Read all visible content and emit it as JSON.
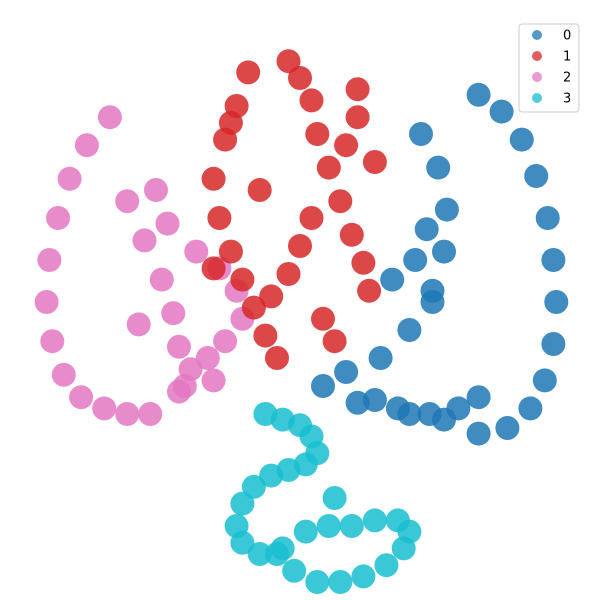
{
  "chart_data": {
    "type": "scatter",
    "title": "",
    "xlabel": "",
    "ylabel": "",
    "grid": false,
    "axes_visible": false,
    "legend_placement": "top-right",
    "xlim": [
      -100,
      100
    ],
    "ylim": [
      -100,
      100
    ],
    "series": [
      {
        "name": "0",
        "color": "#1f77b4",
        "shape": "right wide arc (outer ring) plus large inner crescent",
        "x": [
          62,
          70,
          77,
          82,
          86,
          88,
          89,
          88,
          85,
          80,
          72,
          62,
          50,
          38,
          26,
          42,
          48,
          51,
          50,
          46,
          38,
          28,
          16,
          8,
          20,
          34,
          45,
          55,
          62,
          32,
          40,
          46,
          44
        ],
        "y": [
          74,
          68,
          58,
          45,
          30,
          15,
          0,
          -15,
          -28,
          -38,
          -45,
          -47,
          -42,
          -40,
          -35,
          60,
          48,
          33,
          18,
          4,
          -10,
          -20,
          -25,
          -30,
          -36,
          -38,
          -40,
          -38,
          -34,
          8,
          15,
          0,
          26
        ]
      },
      {
        "name": "1",
        "color": "#d62728",
        "shape": "upper cluster, two lobes",
        "x": [
          -18,
          -22,
          -26,
          -30,
          -28,
          -24,
          -20,
          -16,
          -12,
          -8,
          -4,
          0,
          4,
          6,
          10,
          14,
          18,
          22,
          24,
          8,
          12,
          16,
          20,
          4,
          0,
          -4,
          -10,
          -14,
          26,
          20,
          -30,
          -24
        ],
        "y": [
          82,
          70,
          58,
          44,
          30,
          18,
          8,
          -2,
          -12,
          -20,
          86,
          80,
          72,
          60,
          48,
          36,
          24,
          14,
          4,
          -6,
          -14,
          56,
          66,
          30,
          20,
          10,
          2,
          40,
          50,
          76,
          12,
          64
        ]
      },
      {
        "name": "2",
        "color": "#e377c2",
        "shape": "left outer arc plus inner pink mass",
        "x": [
          -66,
          -74,
          -80,
          -84,
          -87,
          -88,
          -86,
          -82,
          -76,
          -68,
          -60,
          -52,
          -42,
          -60,
          -54,
          -48,
          -44,
          -42,
          -38,
          -32,
          -26,
          -20,
          -22,
          -28,
          -36,
          -46,
          -56,
          -50,
          -40,
          -30
        ],
        "y": [
          66,
          56,
          44,
          30,
          15,
          0,
          -14,
          -26,
          -34,
          -38,
          -40,
          -40,
          -32,
          36,
          22,
          8,
          -4,
          -16,
          -24,
          -20,
          -14,
          -6,
          4,
          12,
          18,
          28,
          -8,
          40,
          -30,
          -28
        ]
      },
      {
        "name": "3",
        "color": "#17becf",
        "shape": "lower cluster with trailing loop",
        "x": [
          -12,
          -6,
          0,
          4,
          6,
          2,
          -4,
          -10,
          -16,
          -20,
          -22,
          -20,
          -14,
          -6,
          2,
          10,
          18,
          26,
          34,
          38,
          36,
          30,
          22,
          14,
          6,
          -2,
          -8,
          12
        ],
        "y": [
          -40,
          -42,
          -44,
          -48,
          -54,
          -58,
          -60,
          -62,
          -66,
          -72,
          -80,
          -86,
          -90,
          -88,
          -82,
          -80,
          -80,
          -78,
          -78,
          -82,
          -88,
          -94,
          -98,
          -100,
          -100,
          -96,
          -90,
          -70
        ]
      }
    ]
  }
}
